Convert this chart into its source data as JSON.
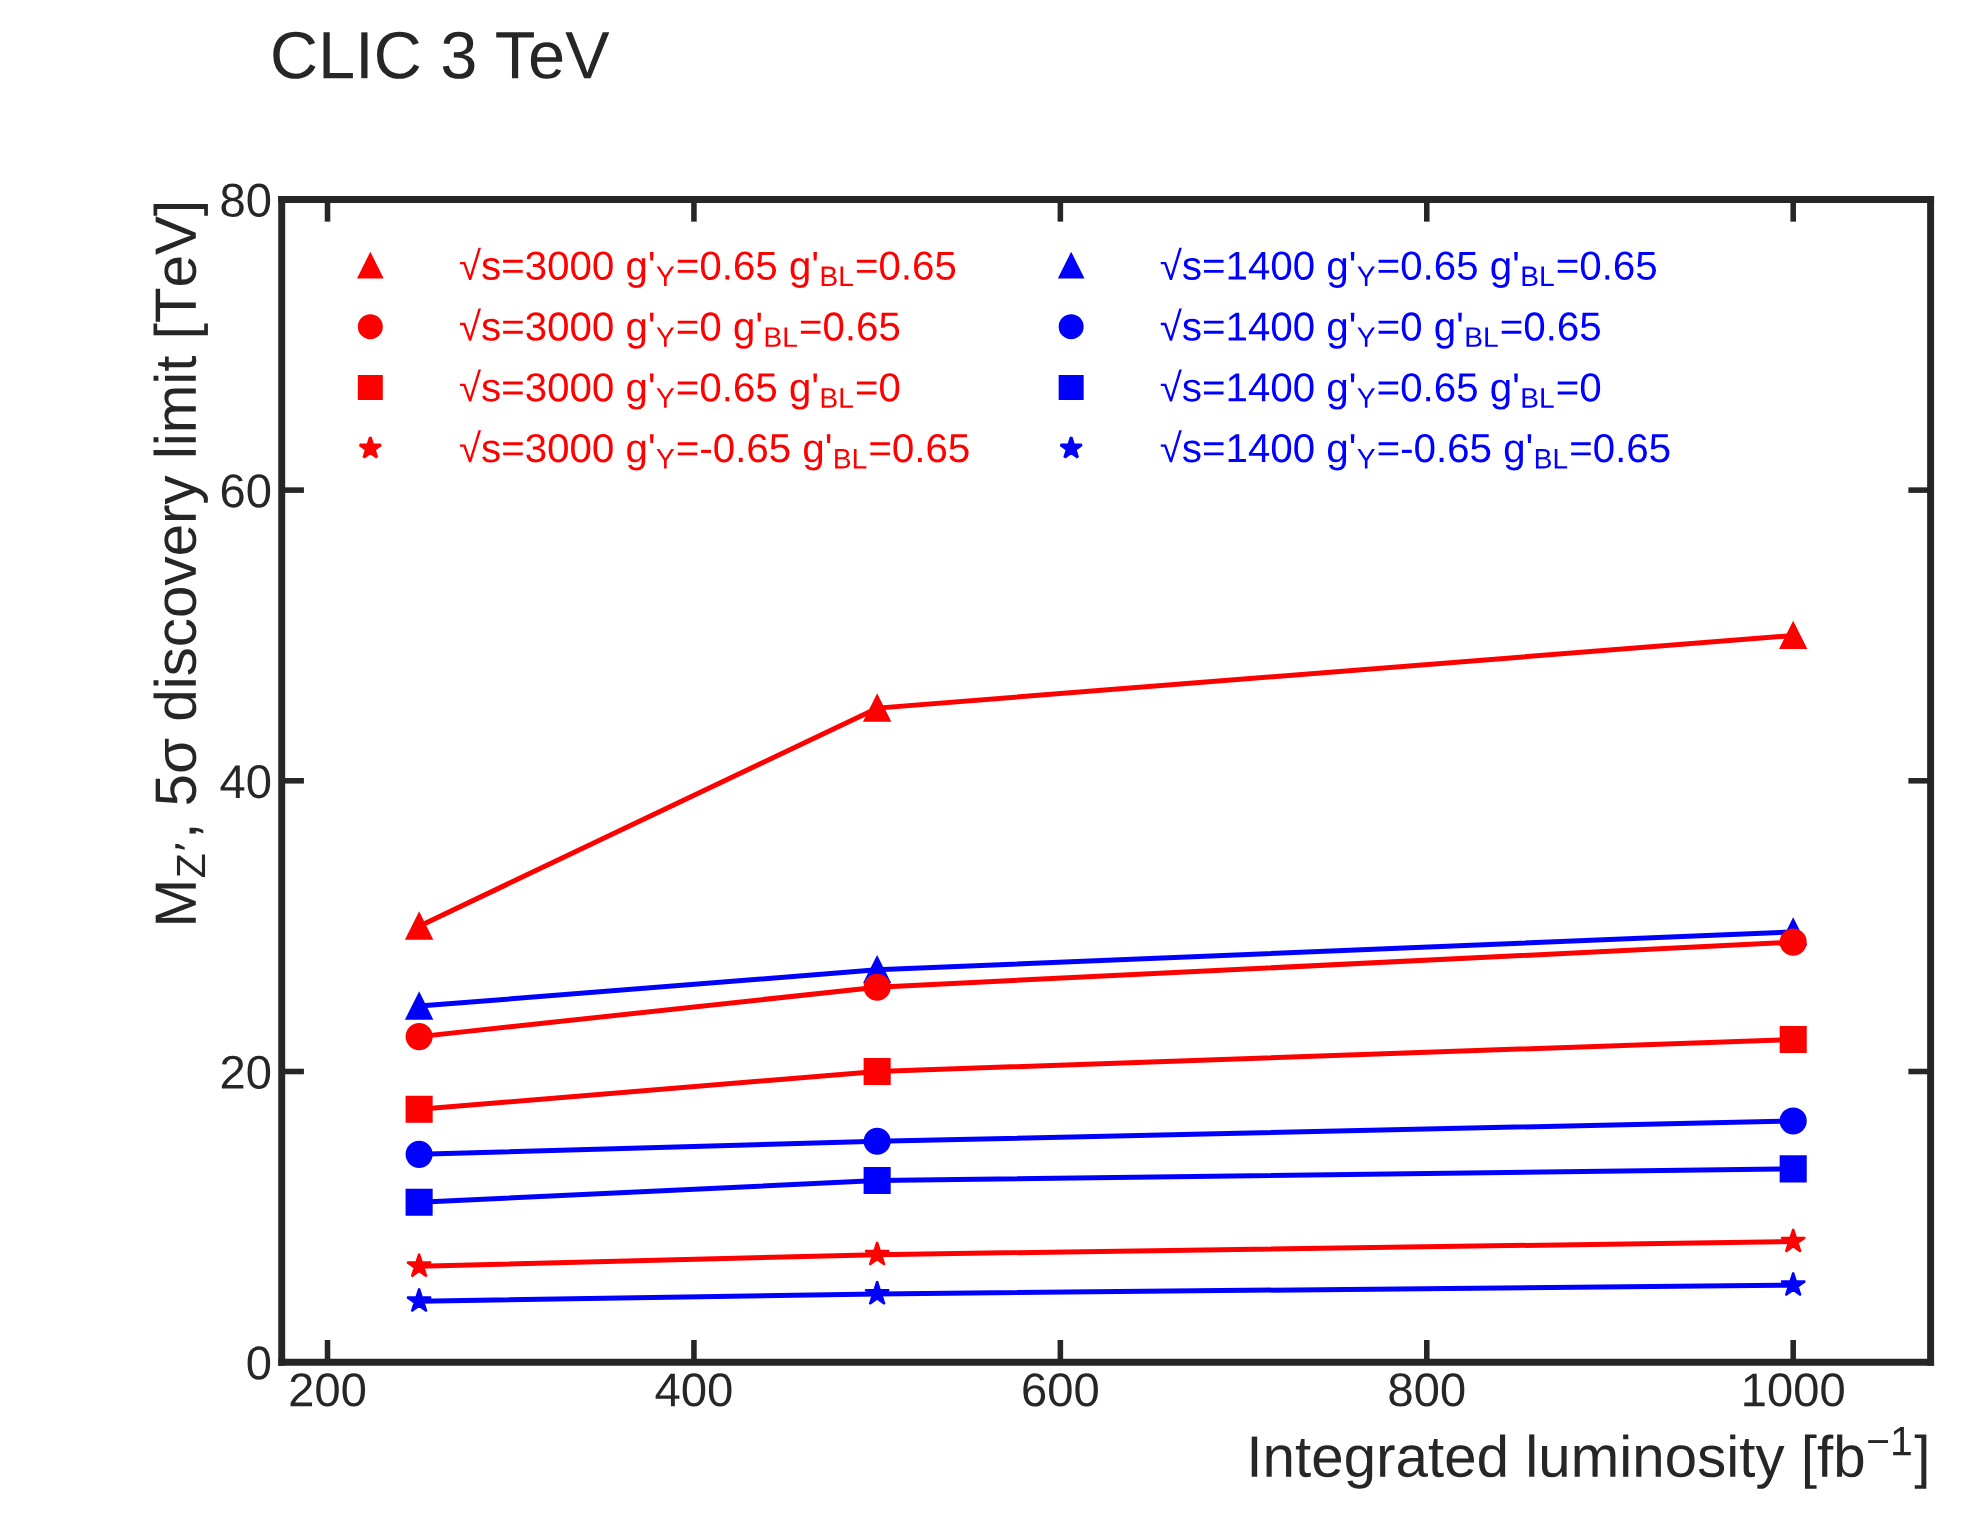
{
  "chart_data": {
    "type": "line",
    "title": "CLIC 3 TeV",
    "xlabel": "Integrated luminosity [fb$^{−1}$]",
    "ylabel": "M$_{Z’}$, 5σ discovery limit [TeV]",
    "x": [
      250,
      500,
      1000
    ],
    "xlim": [
      175,
      1075
    ],
    "xticks": [
      200,
      400,
      600,
      800,
      1000
    ],
    "ylim": [
      0,
      80
    ],
    "yticks": [
      0,
      20,
      40,
      60,
      80
    ],
    "grid": false,
    "legend": "top left",
    "line_style": "solid",
    "series": [
      {
        "name": "√s=3000 g'$_{Y}$=0.65 g'$_{BL}$=0.65",
        "color": "#ff0000",
        "marker": "triangle",
        "values": [
          30,
          45,
          50
        ]
      },
      {
        "name": "√s=3000 g'$_{Y}$=0 g'$_{BL}$=0.65",
        "color": "#ff0000",
        "marker": "circle",
        "values": [
          22.4,
          25.8,
          28.9
        ]
      },
      {
        "name": "√s=3000 g'$_{Y}$=0.65 g'$_{BL}$=0",
        "color": "#ff0000",
        "marker": "square",
        "values": [
          17.4,
          20,
          22.2
        ]
      },
      {
        "name": "√s=3000 g'$_{Y}$=-0.65 g'$_{BL}$=0.65",
        "color": "#ff0000",
        "marker": "star",
        "values": [
          6.6,
          7.4,
          8.3
        ]
      },
      {
        "name": "√s=1400 g'$_{Y}$=0.65 g'$_{BL}$=0.65",
        "color": "#0000ff",
        "marker": "triangle",
        "values": [
          24.5,
          27,
          29.6
        ]
      },
      {
        "name": "√s=1400 g'$_{Y}$=0 g'$_{BL}$=0.65",
        "color": "#0000ff",
        "marker": "circle",
        "values": [
          14.3,
          15.2,
          16.6
        ]
      },
      {
        "name": "√s=1400 g'$_{Y}$=0.65 g'$_{BL}$=0",
        "color": "#0000ff",
        "marker": "square",
        "values": [
          11,
          12.5,
          13.3
        ]
      },
      {
        "name": "√s=1400 g'$_{Y}$=-0.65 g'$_{BL}$=0.65",
        "color": "#0000ff",
        "marker": "star",
        "values": [
          4.2,
          4.7,
          5.3
        ]
      }
    ]
  }
}
